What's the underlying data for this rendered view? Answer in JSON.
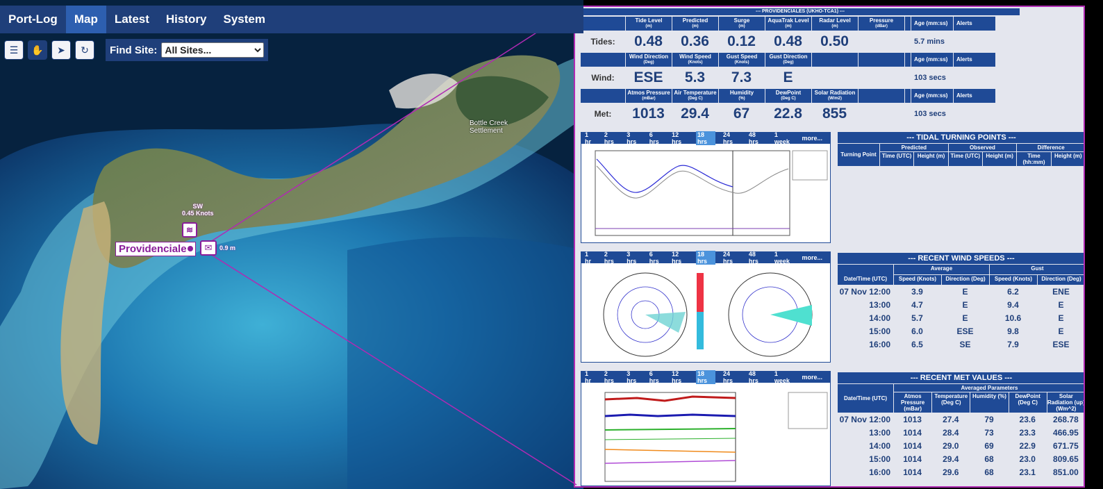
{
  "nav": {
    "brand": "Port-Log",
    "items": [
      "Map",
      "Latest",
      "History",
      "System"
    ],
    "active": "Map"
  },
  "toolbar": {
    "buttons": [
      "layers-icon",
      "pan-hand-icon",
      "pointer-icon",
      "refresh-icon"
    ],
    "active": "pan-hand-icon"
  },
  "find_site": {
    "label": "Find Site:",
    "value": "All Sites..."
  },
  "map_labels": {
    "site": "Providenciales",
    "settlement": "Bottle Creek Settlement",
    "wind_dir": "SW",
    "wind_speed": "0.45 Knots",
    "tide": "0.9 m"
  },
  "station": {
    "title": "--- PROVIDENCIALES (UKHO-TCA1) ---",
    "tides": {
      "label": "Tides:",
      "headers": [
        "Tide Level",
        "Predicted",
        "Surge",
        "AquaTrak Level",
        "Radar Level",
        "Pressure"
      ],
      "units": [
        "(m)",
        "(m)",
        "(m)",
        "(m)",
        "(m)",
        "(dBar)"
      ],
      "values": [
        "0.48",
        "0.36",
        "0.12",
        "0.48",
        "0.50",
        ""
      ],
      "age": "5.7 mins"
    },
    "wind": {
      "label": "Wind:",
      "headers": [
        "Wind Direction",
        "Wind Speed",
        "Gust Speed",
        "Gust Direction",
        "",
        ""
      ],
      "units": [
        "(Deg)",
        "(Knots)",
        "(Knots)",
        "(Deg)",
        "",
        ""
      ],
      "values": [
        "ESE",
        "5.3",
        "7.3",
        "E",
        "",
        ""
      ],
      "age": "103 secs"
    },
    "met": {
      "label": "Met:",
      "headers": [
        "Atmos Pressure",
        "Air Temperature",
        "Humidity",
        "DewPoint",
        "Solar Radiation",
        ""
      ],
      "units": [
        "(mBar)",
        "(Deg C)",
        "(%)",
        "(Deg C)",
        "(W/m2)",
        ""
      ],
      "values": [
        "1013",
        "29.4",
        "67",
        "22.8",
        "855",
        ""
      ],
      "age": "103 secs"
    },
    "age_header": "Age (mm:ss)",
    "alerts_header": "Alerts"
  },
  "time_tabs": [
    "1 hr",
    "2 hrs",
    "3 hrs",
    "6 hrs",
    "12 hrs",
    "18 hrs",
    "24 hrs",
    "48 hrs",
    "1 week",
    "more..."
  ],
  "time_tab_selected": "18 hrs",
  "tidal_turning": {
    "title": "--- TIDAL TURNING POINTS ---",
    "row_header": "Turning Point",
    "groups": [
      "Predicted",
      "Observed",
      "Difference"
    ],
    "subheaders": [
      "Time (UTC)",
      "Height (m)",
      "Time (UTC)",
      "Height (m)",
      "Time (hh:mm)",
      "Height (m)"
    ]
  },
  "recent_wind": {
    "title": "--- RECENT WIND SPEEDS ---",
    "groups": [
      "Average",
      "Gust"
    ],
    "headers": [
      "Date/Time (UTC)",
      "Speed (Knots)",
      "Direction (Deg)",
      "Speed (Knots)",
      "Direction (Deg)"
    ],
    "rows": [
      [
        "07 Nov 12:00",
        "3.9",
        "E",
        "6.2",
        "ENE"
      ],
      [
        "13:00",
        "4.7",
        "E",
        "9.4",
        "E"
      ],
      [
        "14:00",
        "5.7",
        "E",
        "10.6",
        "E"
      ],
      [
        "15:00",
        "6.0",
        "ESE",
        "9.8",
        "E"
      ],
      [
        "16:00",
        "6.5",
        "SE",
        "7.9",
        "ESE"
      ]
    ]
  },
  "recent_met": {
    "title": "--- RECENT MET VALUES ---",
    "group": "Averaged Parameters",
    "headers": [
      "Date/Time (UTC)",
      "Atmos Pressure (mBar)",
      "Temperature (Deg C)",
      "Humidity (%)",
      "DewPoint (Deg C)",
      "Solar Radiation (up) (Wm^2)"
    ],
    "rows": [
      [
        "07 Nov 12:00",
        "1013",
        "27.4",
        "79",
        "23.6",
        "268.78"
      ],
      [
        "13:00",
        "1014",
        "28.4",
        "73",
        "23.3",
        "466.95"
      ],
      [
        "14:00",
        "1014",
        "29.0",
        "69",
        "22.9",
        "671.75"
      ],
      [
        "15:00",
        "1014",
        "29.4",
        "68",
        "23.0",
        "809.65"
      ],
      [
        "16:00",
        "1014",
        "29.6",
        "68",
        "23.1",
        "851.00"
      ]
    ]
  },
  "colors": {
    "nav": "#1f3f7a",
    "header": "#1f4a96",
    "accent": "#b02ab3",
    "value": "#1f3f7a"
  }
}
